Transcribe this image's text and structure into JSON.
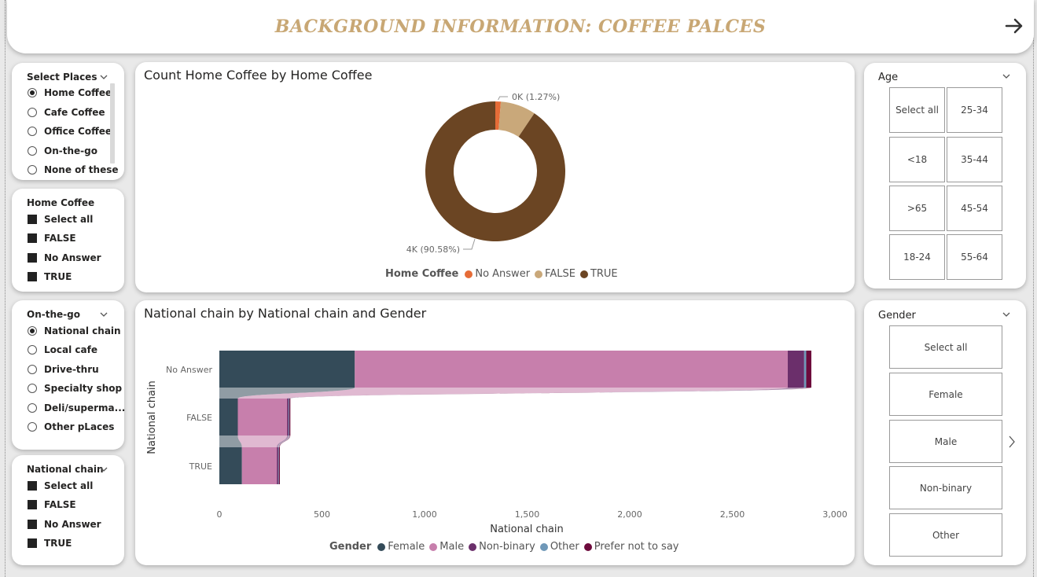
{
  "header": {
    "title": "BACKGROUND INFORMATION: COFFEE PALCES"
  },
  "colors": {
    "accent_gold": "#c8a774",
    "no_answer": "#e66c37",
    "false": "#c9a87a",
    "true": "#6b4523",
    "female": "#344b59",
    "male": "#c77fac",
    "non_binary": "#6b2f6b",
    "other": "#6f98b8",
    "prefer_not": "#6d0a3c"
  },
  "slicer_places": {
    "title": "Select Places",
    "options": [
      "Home Coffee",
      "Cafe Coffee",
      "Office Coffee",
      "On-the-go",
      "None of these"
    ],
    "selected": "Home Coffee"
  },
  "slicer_home_coffee": {
    "title": "Home Coffee",
    "options": [
      "Select all",
      "FALSE",
      "No Answer",
      "TRUE"
    ]
  },
  "slicer_on_the_go": {
    "title": "On-the-go",
    "options": [
      "National chain",
      "Local cafe",
      "Drive-thru",
      "Specialty shop",
      "Deli/superma...",
      "Other pLaces"
    ],
    "selected": "National chain"
  },
  "slicer_national_chain": {
    "title": "National chain",
    "options": [
      "Select all",
      "FALSE",
      "No Answer",
      "TRUE"
    ]
  },
  "age_slicer": {
    "title": "Age",
    "tiles": [
      "Select all",
      "25-34",
      "<18",
      "35-44",
      ">65",
      "45-54",
      "18-24",
      "55-64"
    ]
  },
  "gender_slicer": {
    "title": "Gender",
    "tiles": [
      "Select all",
      "Female",
      "Male",
      "Non-binary",
      "Other"
    ]
  },
  "chart_data": [
    {
      "type": "pie",
      "title": "Count Home Coffee by Home Coffee",
      "legend_title": "Home Coffee",
      "categories": [
        "No Answer",
        "FALSE",
        "TRUE"
      ],
      "values": [
        1.27,
        8.15,
        90.58
      ],
      "data_labels": {
        "No Answer": "0K (1.27%)",
        "TRUE": "4K (90.58%)"
      },
      "legend_position": "bottom"
    },
    {
      "type": "bar",
      "title": "National chain by National chain and Gender",
      "categories": [
        "No Answer",
        "FALSE",
        "TRUE"
      ],
      "xlabel": "National chain",
      "ylabel": "National chain",
      "xlim": [
        0,
        3000
      ],
      "xticks": [
        "0",
        "500",
        "1,000",
        "1,500",
        "2,000",
        "2,500",
        "3,000"
      ],
      "legend_title": "Gender",
      "series": [
        {
          "name": "Female",
          "values": [
            660,
            90,
            110
          ]
        },
        {
          "name": "Male",
          "values": [
            2110,
            240,
            170
          ]
        },
        {
          "name": "Non-binary",
          "values": [
            80,
            8,
            7
          ]
        },
        {
          "name": "Other",
          "values": [
            10,
            3,
            3
          ]
        },
        {
          "name": "Prefer not to say",
          "values": [
            25,
            5,
            5
          ]
        }
      ],
      "legend_position": "bottom"
    }
  ]
}
